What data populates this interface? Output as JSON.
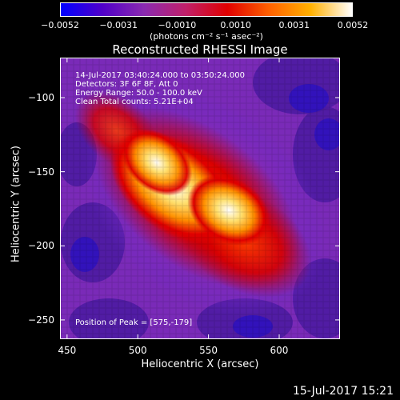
{
  "colorbar": {
    "tick_labels": [
      "−0.0052",
      "−0.0031",
      "−0.0010",
      "0.0010",
      "0.0031",
      "0.0052"
    ],
    "units": "(photons cm⁻² s⁻¹ asec⁻²)",
    "colors": [
      "#0000ff",
      "#5000c8",
      "#8a2ab0",
      "#c0206a",
      "#e00000",
      "#ff6000",
      "#ffb000",
      "#ffffff"
    ]
  },
  "title": "Reconstructed RHESSI Image",
  "info": {
    "time_range": "14-Jul-2017 03:40:24.000 to 03:50:24.000",
    "detectors": "Detectors: 3F 6F 8F, Att 0",
    "energy": "Energy Range: 50.0 - 100.0 keV",
    "clean": "Clean    Total counts: 5.21E+04",
    "peak": "Position of Peak = [575,-179]"
  },
  "axes": {
    "xlabel": "Heliocentric X (arcsec)",
    "ylabel": "Heliocentric Y (arcsec)",
    "x_ticks": [
      "450",
      "500",
      "550",
      "600"
    ],
    "y_ticks": [
      "−100",
      "−150",
      "−200",
      "−250"
    ],
    "xlim": [
      445,
      643
    ],
    "ylim": [
      -263,
      -73
    ]
  },
  "footer": {
    "date": "15-Jul-2017 15:21"
  }
}
